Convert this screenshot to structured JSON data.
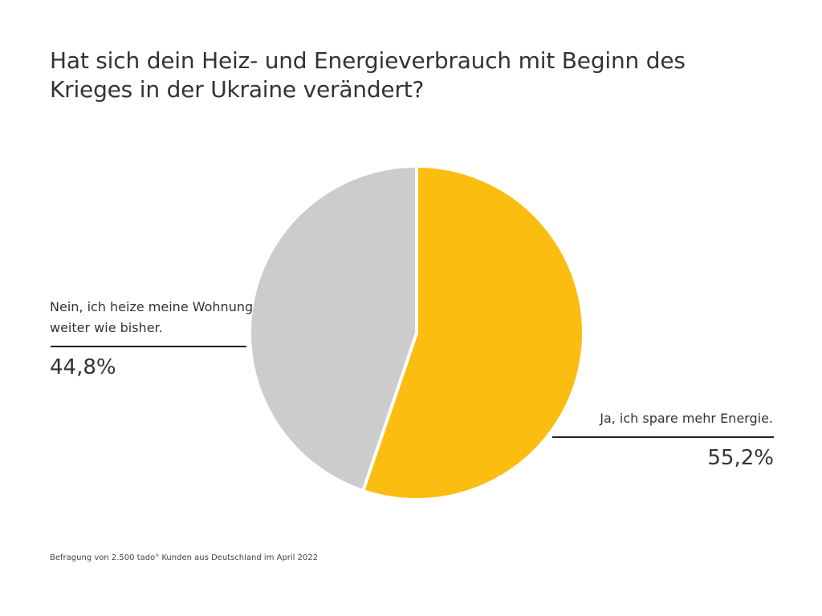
{
  "chart_data": {
    "type": "pie",
    "title": "Hat sich dein Heiz- und Energieverbrauch mit Beginn des Krieges in der Ukraine verändert?",
    "slices": [
      {
        "label": "Ja, ich spare mehr Energie.",
        "value": 55.2,
        "value_label": "55,2%",
        "color": "#FBBE10"
      },
      {
        "label": "Nein, ich heize meine Wohnung weiter wie bisher.",
        "value": 44.8,
        "value_label": "44,8%",
        "color": "#CCCCCC"
      }
    ],
    "start": "12 o'clock, clockwise",
    "footnote": "Befragung von 2.500 tado° Kunden aus Deutschland im April 2022"
  }
}
